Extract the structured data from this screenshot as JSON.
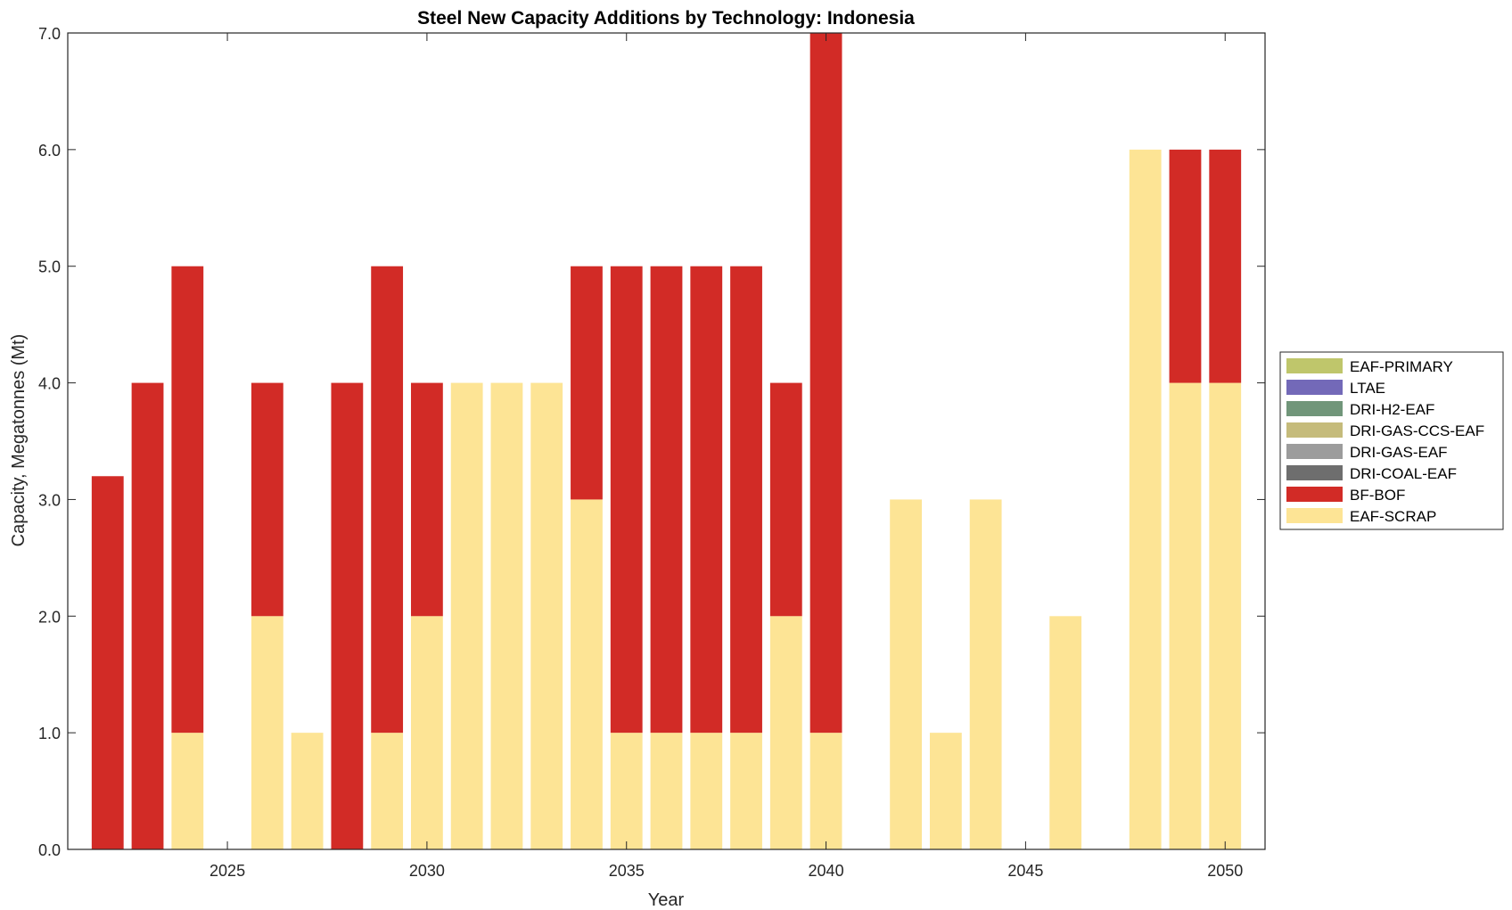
{
  "chart_data": {
    "type": "bar",
    "stacked": true,
    "title": "Steel New Capacity Additions by Technology: Indonesia",
    "xlabel": "Year",
    "ylabel": "Capacity, Megatonnes (Mt)",
    "xlim": [
      2021,
      2051
    ],
    "ylim": [
      0,
      7
    ],
    "xticks": [
      2025,
      2030,
      2035,
      2040,
      2045,
      2050
    ],
    "xtick_labels": [
      "2025",
      "2030",
      "2035",
      "2040",
      "2045",
      "2050"
    ],
    "yticks": [
      0,
      1,
      2,
      3,
      4,
      5,
      6,
      7
    ],
    "ytick_labels": [
      "0.0",
      "1.0",
      "2.0",
      "3.0",
      "4.0",
      "5.0",
      "6.0",
      "7.0"
    ],
    "grid": false,
    "legend_position": "right-outside",
    "x": [
      2022,
      2023,
      2024,
      2025,
      2026,
      2027,
      2028,
      2029,
      2030,
      2031,
      2032,
      2033,
      2034,
      2035,
      2036,
      2037,
      2038,
      2039,
      2040,
      2041,
      2042,
      2043,
      2044,
      2045,
      2046,
      2047,
      2048,
      2049,
      2050
    ],
    "series": [
      {
        "name": "EAF-SCRAP",
        "color": "#FDE495",
        "values": [
          0,
          0,
          1,
          0,
          2,
          1,
          0,
          1,
          2,
          4,
          4,
          4,
          3,
          1,
          1,
          1,
          1,
          2,
          1,
          0,
          3,
          1,
          3,
          0,
          2,
          0,
          6,
          4,
          4
        ]
      },
      {
        "name": "BF-BOF",
        "color": "#D22B26",
        "values": [
          3.2,
          4,
          4,
          0,
          2,
          0,
          4,
          4,
          2,
          0,
          0,
          0,
          2,
          4,
          4,
          4,
          4,
          2,
          6,
          0,
          0,
          0,
          0,
          0,
          0,
          0,
          0,
          2,
          2
        ]
      },
      {
        "name": "DRI-COAL-EAF",
        "color": "#6E6E6E",
        "values": [
          0,
          0,
          0,
          0,
          0,
          0,
          0,
          0,
          0,
          0,
          0,
          0,
          0,
          0,
          0,
          0,
          0,
          0,
          0,
          0,
          0,
          0,
          0,
          0,
          0,
          0,
          0,
          0,
          0
        ]
      },
      {
        "name": "DRI-GAS-EAF",
        "color": "#9C9C9C",
        "values": [
          0,
          0,
          0,
          0,
          0,
          0,
          0,
          0,
          0,
          0,
          0,
          0,
          0,
          0,
          0,
          0,
          0,
          0,
          0,
          0,
          0,
          0,
          0,
          0,
          0,
          0,
          0,
          0,
          0
        ]
      },
      {
        "name": "DRI-GAS-CCS-EAF",
        "color": "#C5BB7B",
        "values": [
          0,
          0,
          0,
          0,
          0,
          0,
          0,
          0,
          0,
          0,
          0,
          0,
          0,
          0,
          0,
          0,
          0,
          0,
          0,
          0,
          0,
          0,
          0,
          0,
          0,
          0,
          0,
          0,
          0
        ]
      },
      {
        "name": "DRI-H2-EAF",
        "color": "#71967A",
        "values": [
          0,
          0,
          0,
          0,
          0,
          0,
          0,
          0,
          0,
          0,
          0,
          0,
          0,
          0,
          0,
          0,
          0,
          0,
          0,
          0,
          0,
          0,
          0,
          0,
          0,
          0,
          0,
          0,
          0
        ]
      },
      {
        "name": "LTAE",
        "color": "#7369B8",
        "values": [
          0,
          0,
          0,
          0,
          0,
          0,
          0,
          0,
          0,
          0,
          0,
          0,
          0,
          0,
          0,
          0,
          0,
          0,
          0,
          0,
          0,
          0,
          0,
          0,
          0,
          0,
          0,
          0,
          0
        ]
      },
      {
        "name": "EAF-PRIMARY",
        "color": "#BFC66B",
        "values": [
          0,
          0,
          0,
          0,
          0,
          0,
          0,
          0,
          0,
          0,
          0,
          0,
          0,
          0,
          0,
          0,
          0,
          0,
          0,
          0,
          0,
          0,
          0,
          0,
          0,
          0,
          0,
          0,
          0
        ]
      }
    ],
    "legend_order": [
      "EAF-PRIMARY",
      "LTAE",
      "DRI-H2-EAF",
      "DRI-GAS-CCS-EAF",
      "DRI-GAS-EAF",
      "DRI-COAL-EAF",
      "BF-BOF",
      "EAF-SCRAP"
    ],
    "bar_width_fraction": 0.8
  }
}
